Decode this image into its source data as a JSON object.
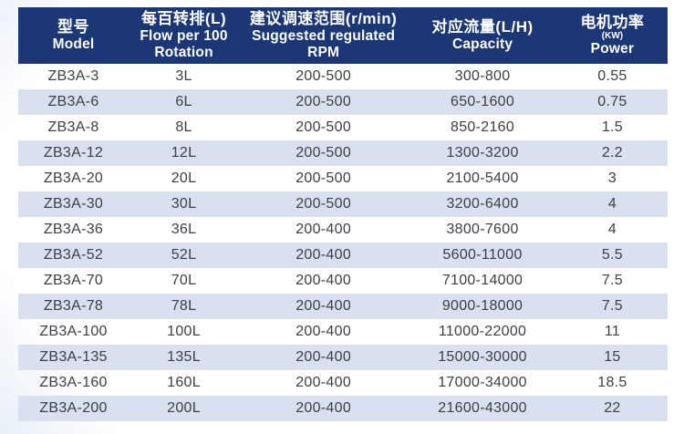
{
  "chart_data": {
    "type": "table",
    "columns": [
      {
        "zh": "型号",
        "en1": "Model"
      },
      {
        "zh": "每百转排(L)",
        "en1": "Flow per 100",
        "en2": "Rotation"
      },
      {
        "zh": "建议调速范围(r/min)",
        "en1": "Suggested regulated",
        "en2": "RPM"
      },
      {
        "zh": "对应流量(L/H)",
        "en1": "Capacity"
      },
      {
        "zh": "电机功率",
        "sub": "(KW)",
        "en1": "Power"
      }
    ],
    "rows": [
      [
        "ZB3A-3",
        "3L",
        "200-500",
        "300-800",
        "0.55"
      ],
      [
        "ZB3A-6",
        "6L",
        "200-500",
        "650-1600",
        "0.75"
      ],
      [
        "ZB3A-8",
        "8L",
        "200-500",
        "850-2160",
        "1.5"
      ],
      [
        "ZB3A-12",
        "12L",
        "200-500",
        "1300-3200",
        "2.2"
      ],
      [
        "ZB3A-20",
        "20L",
        "200-500",
        "2100-5400",
        "3"
      ],
      [
        "ZB3A-30",
        "30L",
        "200-500",
        "3200-6400",
        "4"
      ],
      [
        "ZB3A-36",
        "36L",
        "200-400",
        "3800-7600",
        "4"
      ],
      [
        "ZB3A-52",
        "52L",
        "200-400",
        "5600-11000",
        "5.5"
      ],
      [
        "ZB3A-70",
        "70L",
        "200-400",
        "7100-14000",
        "7.5"
      ],
      [
        "ZB3A-78",
        "78L",
        "200-400",
        "9000-18000",
        "7.5"
      ],
      [
        "ZB3A-100",
        "100L",
        "200-400",
        "11000-22000",
        "11"
      ],
      [
        "ZB3A-135",
        "135L",
        "200-400",
        "15000-30000",
        "15"
      ],
      [
        "ZB3A-160",
        "160L",
        "200-400",
        "17000-34000",
        "18.5"
      ],
      [
        "ZB3A-200",
        "200L",
        "200-400",
        "21600-43000",
        "22"
      ]
    ]
  },
  "colors": {
    "header_bg": "#1c3776",
    "stripe": "#d9e0f0",
    "body_text": "#3c3f45",
    "header_text": "#ffffff"
  }
}
